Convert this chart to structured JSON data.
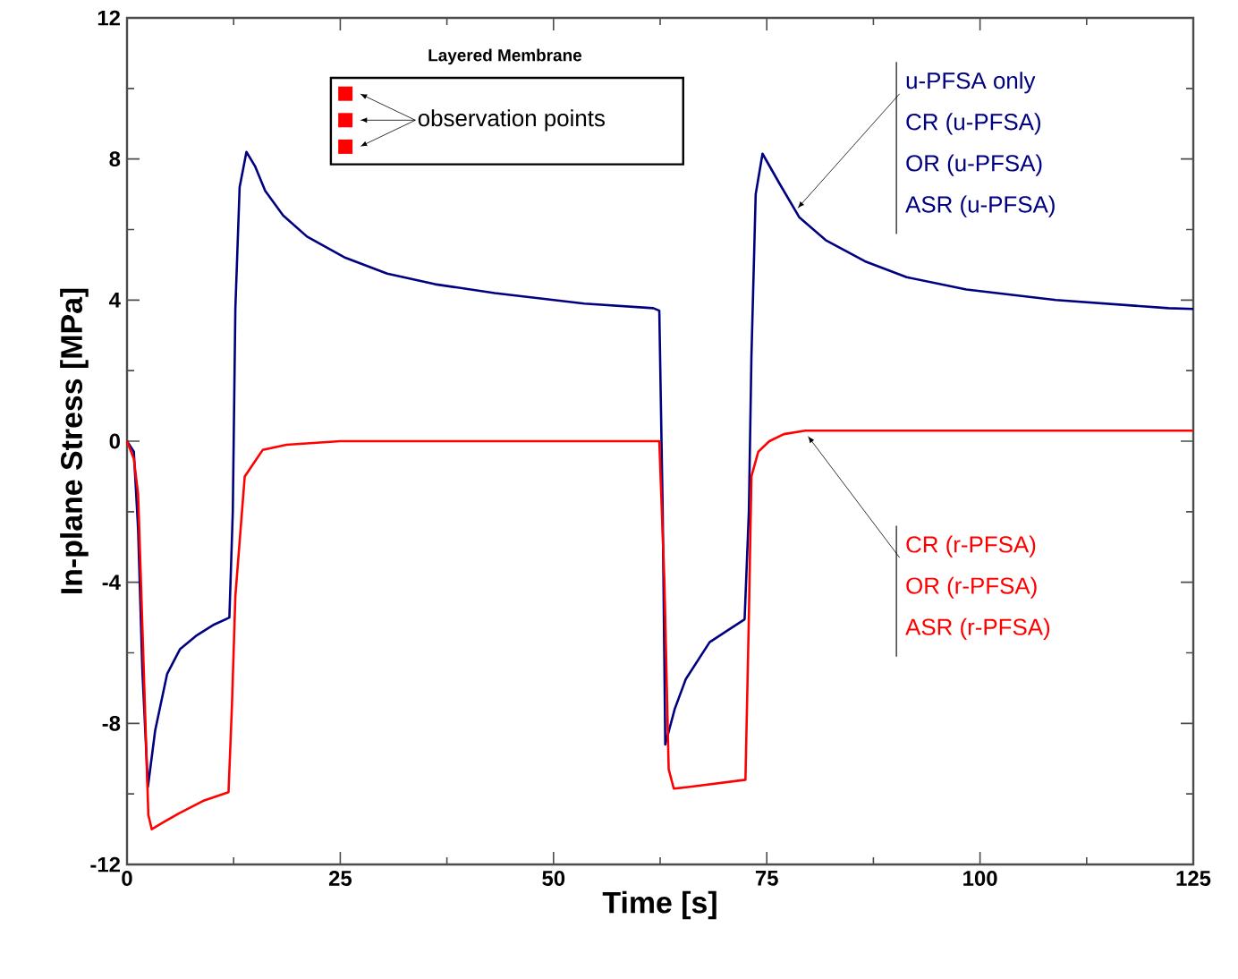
{
  "chart_data": {
    "type": "line",
    "title": "Layered Membrane",
    "subtitle": "observation points",
    "xlabel": "Time [s]",
    "ylabel": "In-plane Stress [MPa]",
    "xlim": [
      0,
      125
    ],
    "ylim": [
      -12,
      12
    ],
    "xticks": [
      0,
      25,
      50,
      75,
      100,
      125
    ],
    "yticks": [
      -12,
      -8,
      -4,
      0,
      4,
      8,
      12
    ],
    "series": [
      {
        "color": "#000080",
        "x": [
          0,
          0.8,
          1.3,
          1.8,
          2.45,
          3.3,
          4.7,
          6.2,
          8.2,
          10.2,
          12.0,
          12.4,
          12.7,
          13.2,
          14.0,
          15.0,
          16.2,
          18.3,
          21.1,
          25.6,
          30.5,
          36.1,
          43.1,
          53.6,
          61.7,
          62.4,
          62.8,
          63.1,
          64.2,
          65.5,
          68.3,
          70.5,
          72.4,
          72.9,
          73.2,
          73.7,
          74.5,
          76.5,
          78.8,
          81.9,
          86.5,
          91.4,
          98.4,
          108.9,
          122.1,
          125
        ],
        "values": [
          0,
          -0.3,
          -2.5,
          -6.5,
          -9.8,
          -8.2,
          -6.6,
          -5.9,
          -5.5,
          -5.2,
          -5.0,
          -2.0,
          3.75,
          7.2,
          8.2,
          7.8,
          7.1,
          6.4,
          5.8,
          5.2,
          4.75,
          4.45,
          4.2,
          3.9,
          3.77,
          3.7,
          -2.0,
          -8.6,
          -7.6,
          -6.75,
          -5.7,
          -5.35,
          -5.05,
          -2.0,
          2.4,
          7.0,
          8.15,
          7.3,
          6.35,
          5.7,
          5.1,
          4.65,
          4.3,
          4.0,
          3.77,
          3.75
        ]
      },
      {
        "color": "#ff0000",
        "x": [
          0,
          0.8,
          1.3,
          1.9,
          2.5,
          2.9,
          4.3,
          6.1,
          8.9,
          11.9,
          12.3,
          12.7,
          13.8,
          15.9,
          18.7,
          25,
          62.4,
          63.0,
          63.5,
          64.1,
          66,
          72.5,
          72.9,
          73.2,
          74.0,
          75.3,
          77,
          79.5,
          125
        ],
        "values": [
          0,
          -0.5,
          -1.5,
          -6.0,
          -10.6,
          -11.0,
          -10.8,
          -10.55,
          -10.2,
          -9.95,
          -7.5,
          -4.4,
          -1.0,
          -0.25,
          -0.1,
          0,
          0,
          -4.0,
          -9.3,
          -9.85,
          -9.8,
          -9.6,
          -5.0,
          -1.0,
          -0.3,
          0.0,
          0.2,
          0.3,
          0.3
        ]
      }
    ],
    "annotations": [
      {
        "text": "u-PFSA only",
        "x": 78.6,
        "y": 6.6
      },
      "CR (u-PFSA)",
      "OR (u-PFSA)",
      "ASR (u-PFSA)",
      {
        "text": "CR (r-PFSA)",
        "x": 79.8,
        "y": 0.15
      },
      "OR (r-PFSA)",
      "ASR (r-PFSA)"
    ]
  }
}
